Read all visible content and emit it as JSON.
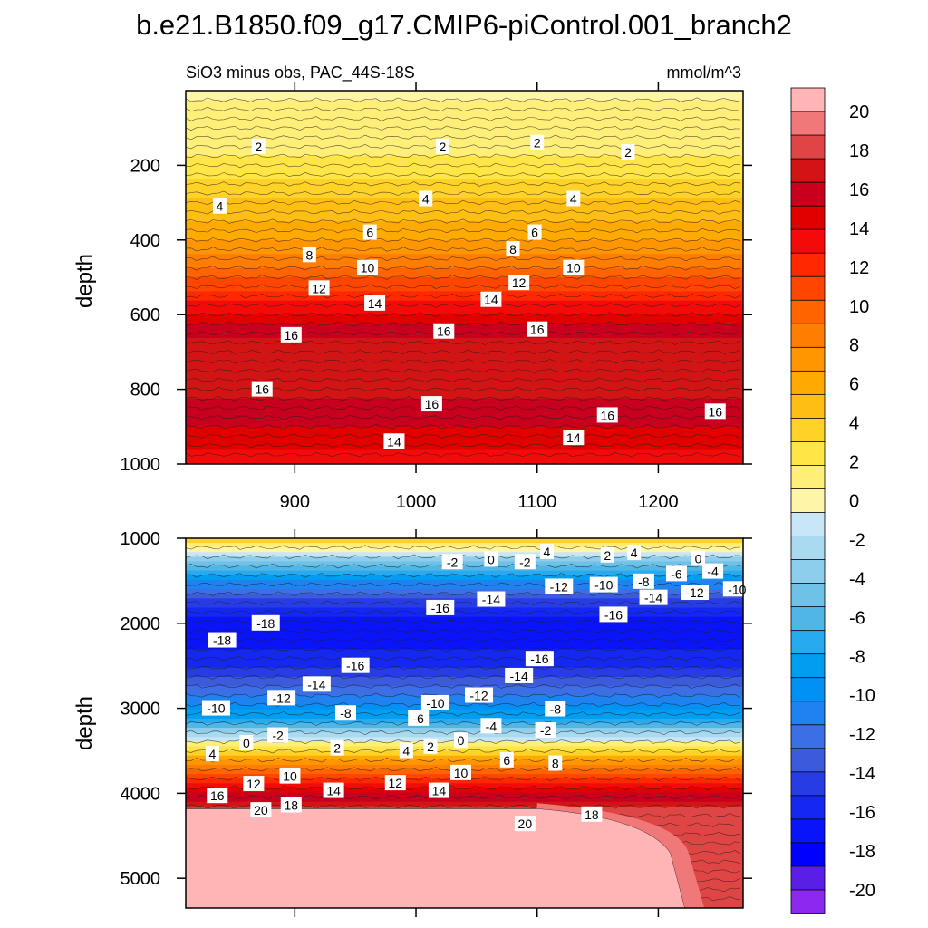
{
  "chart_data": {
    "type": "heatmap",
    "title": "b.e21.B1850.f09_g17.CMIP6-piControl.001_branch2",
    "subtitle_left": "SiO3 minus obs, PAC_44S-18S",
    "subtitle_right": "mmol/m^3",
    "x_range": [
      810,
      1270
    ],
    "x_ticks": [
      900,
      1000,
      1100,
      1200
    ],
    "x_tick_labels": [
      "900",
      "1000",
      "1100",
      "1200"
    ],
    "panels": [
      {
        "name": "upper",
        "ylabel": "depth",
        "y_range": [
          0,
          1000
        ],
        "y_ticks": [
          200,
          400,
          600,
          800,
          1000
        ],
        "y_tick_labels": [
          "200",
          "400",
          "600",
          "800",
          "1000"
        ],
        "profile": [
          [
            0,
            0.5
          ],
          [
            100,
            1
          ],
          [
            200,
            2
          ],
          [
            280,
            4
          ],
          [
            380,
            6
          ],
          [
            450,
            8
          ],
          [
            500,
            10
          ],
          [
            550,
            12
          ],
          [
            600,
            14
          ],
          [
            650,
            16
          ],
          [
            720,
            17
          ],
          [
            780,
            17
          ],
          [
            830,
            16
          ],
          [
            900,
            15
          ],
          [
            950,
            14
          ],
          [
            1000,
            13
          ]
        ],
        "contour_labels": [
          {
            "text": "2",
            "x": 870,
            "y": 150
          },
          {
            "text": "2",
            "x": 1022,
            "y": 150
          },
          {
            "text": "2",
            "x": 1100,
            "y": 140
          },
          {
            "text": "2",
            "x": 1175,
            "y": 165
          },
          {
            "text": "4",
            "x": 838,
            "y": 310
          },
          {
            "text": "4",
            "x": 1008,
            "y": 290
          },
          {
            "text": "4",
            "x": 1130,
            "y": 290
          },
          {
            "text": "6",
            "x": 962,
            "y": 380
          },
          {
            "text": "6",
            "x": 1098,
            "y": 380
          },
          {
            "text": "8",
            "x": 912,
            "y": 440
          },
          {
            "text": "8",
            "x": 1080,
            "y": 425
          },
          {
            "text": "10",
            "x": 960,
            "y": 475
          },
          {
            "text": "10",
            "x": 1130,
            "y": 475
          },
          {
            "text": "12",
            "x": 920,
            "y": 530
          },
          {
            "text": "12",
            "x": 1085,
            "y": 515
          },
          {
            "text": "14",
            "x": 966,
            "y": 570
          },
          {
            "text": "14",
            "x": 1062,
            "y": 560
          },
          {
            "text": "16",
            "x": 897,
            "y": 655
          },
          {
            "text": "16",
            "x": 1023,
            "y": 645
          },
          {
            "text": "16",
            "x": 1100,
            "y": 640
          },
          {
            "text": "16",
            "x": 873,
            "y": 800
          },
          {
            "text": "16",
            "x": 1013,
            "y": 840
          },
          {
            "text": "16",
            "x": 1158,
            "y": 870
          },
          {
            "text": "16",
            "x": 1247,
            "y": 860
          },
          {
            "text": "14",
            "x": 982,
            "y": 940
          },
          {
            "text": "14",
            "x": 1130,
            "y": 930
          }
        ]
      },
      {
        "name": "lower",
        "ylabel": "depth",
        "y_range": [
          1000,
          5350
        ],
        "y_ticks": [
          1000,
          2000,
          3000,
          4000,
          5000
        ],
        "y_tick_labels": [
          "1000",
          "2000",
          "3000",
          "4000",
          "5000"
        ],
        "profile": [
          [
            1000,
            4
          ],
          [
            1200,
            -2
          ],
          [
            1500,
            -10
          ],
          [
            1800,
            -15
          ],
          [
            2000,
            -17
          ],
          [
            2200,
            -17
          ],
          [
            2500,
            -15
          ],
          [
            2800,
            -12
          ],
          [
            3100,
            -8
          ],
          [
            3300,
            -3
          ],
          [
            3450,
            2
          ],
          [
            3600,
            6
          ],
          [
            3800,
            11
          ],
          [
            4000,
            15
          ],
          [
            4200,
            18
          ]
        ],
        "bottom_region": "20",
        "contour_labels": [
          {
            "text": "-2",
            "x": 1030,
            "y": 1280
          },
          {
            "text": "0",
            "x": 1062,
            "y": 1250
          },
          {
            "text": "4",
            "x": 1108,
            "y": 1160
          },
          {
            "text": "-2",
            "x": 1090,
            "y": 1280
          },
          {
            "text": "2",
            "x": 1158,
            "y": 1200
          },
          {
            "text": "4",
            "x": 1180,
            "y": 1170
          },
          {
            "text": "0",
            "x": 1233,
            "y": 1240
          },
          {
            "text": "-12",
            "x": 1118,
            "y": 1570
          },
          {
            "text": "-10",
            "x": 1155,
            "y": 1550
          },
          {
            "text": "-8",
            "x": 1188,
            "y": 1510
          },
          {
            "text": "-6",
            "x": 1215,
            "y": 1420
          },
          {
            "text": "-4",
            "x": 1245,
            "y": 1390
          },
          {
            "text": "-16",
            "x": 1020,
            "y": 1820
          },
          {
            "text": "-14",
            "x": 1062,
            "y": 1720
          },
          {
            "text": "-16",
            "x": 1163,
            "y": 1900
          },
          {
            "text": "-14",
            "x": 1196,
            "y": 1700
          },
          {
            "text": "-12",
            "x": 1230,
            "y": 1640
          },
          {
            "text": "-10",
            "x": 1265,
            "y": 1600
          },
          {
            "text": "-18",
            "x": 840,
            "y": 2200
          },
          {
            "text": "-18",
            "x": 876,
            "y": 2000
          },
          {
            "text": "-16",
            "x": 950,
            "y": 2500
          },
          {
            "text": "-16",
            "x": 1102,
            "y": 2420
          },
          {
            "text": "-14",
            "x": 918,
            "y": 2720
          },
          {
            "text": "-12",
            "x": 889,
            "y": 2880
          },
          {
            "text": "-10",
            "x": 835,
            "y": 3000
          },
          {
            "text": "-8",
            "x": 942,
            "y": 3060
          },
          {
            "text": "-10",
            "x": 1016,
            "y": 2940
          },
          {
            "text": "-12",
            "x": 1052,
            "y": 2850
          },
          {
            "text": "-14",
            "x": 1085,
            "y": 2620
          },
          {
            "text": "-8",
            "x": 1115,
            "y": 3010
          },
          {
            "text": "-6",
            "x": 1002,
            "y": 3120
          },
          {
            "text": "-4",
            "x": 1062,
            "y": 3210
          },
          {
            "text": "-2",
            "x": 1107,
            "y": 3260
          },
          {
            "text": "-2",
            "x": 886,
            "y": 3320
          },
          {
            "text": "0",
            "x": 860,
            "y": 3410
          },
          {
            "text": "2",
            "x": 935,
            "y": 3470
          },
          {
            "text": "4",
            "x": 832,
            "y": 3540
          },
          {
            "text": "4",
            "x": 992,
            "y": 3500
          },
          {
            "text": "2",
            "x": 1012,
            "y": 3450
          },
          {
            "text": "0",
            "x": 1037,
            "y": 3380
          },
          {
            "text": "6",
            "x": 1075,
            "y": 3610
          },
          {
            "text": "8",
            "x": 1115,
            "y": 3650
          },
          {
            "text": "10",
            "x": 1037,
            "y": 3760
          },
          {
            "text": "12",
            "x": 866,
            "y": 3890
          },
          {
            "text": "10",
            "x": 896,
            "y": 3800
          },
          {
            "text": "12",
            "x": 983,
            "y": 3880
          },
          {
            "text": "14",
            "x": 932,
            "y": 3970
          },
          {
            "text": "14",
            "x": 1019,
            "y": 3970
          },
          {
            "text": "16",
            "x": 836,
            "y": 4030
          },
          {
            "text": "20",
            "x": 872,
            "y": 4200
          },
          {
            "text": "18",
            "x": 897,
            "y": 4140
          },
          {
            "text": "20",
            "x": 1090,
            "y": 4360
          },
          {
            "text": "18",
            "x": 1145,
            "y": 4250
          }
        ]
      }
    ],
    "colorbar": {
      "ticks": [
        "20",
        "18",
        "16",
        "14",
        "12",
        "10",
        "8",
        "6",
        "4",
        "2",
        "0",
        "-2",
        "-4",
        "-6",
        "-8",
        "-10",
        "-12",
        "-14",
        "-16",
        "-18",
        "-20"
      ],
      "colors": [
        "#FFB5B5",
        "#F07878",
        "#E04545",
        "#D21414",
        "#C8001E",
        "#E00000",
        "#F50A0A",
        "#FF2800",
        "#FF4600",
        "#FF6400",
        "#FF7D00",
        "#FF9600",
        "#FFAA00",
        "#FFBE14",
        "#FFD228",
        "#FFE646",
        "#FFEE78",
        "#FFF5A8",
        "#C8E6F5",
        "#AADAF0",
        "#8CCEEC",
        "#6EC2E8",
        "#50B6E6",
        "#28AAF0",
        "#009EF0",
        "#0091F5",
        "#1E82F0",
        "#3C6EE6",
        "#3C5ADC",
        "#283CE6",
        "#1428F0",
        "#0A14FA",
        "#0000FF",
        "#5A1EE6",
        "#8C28F0"
      ]
    }
  }
}
